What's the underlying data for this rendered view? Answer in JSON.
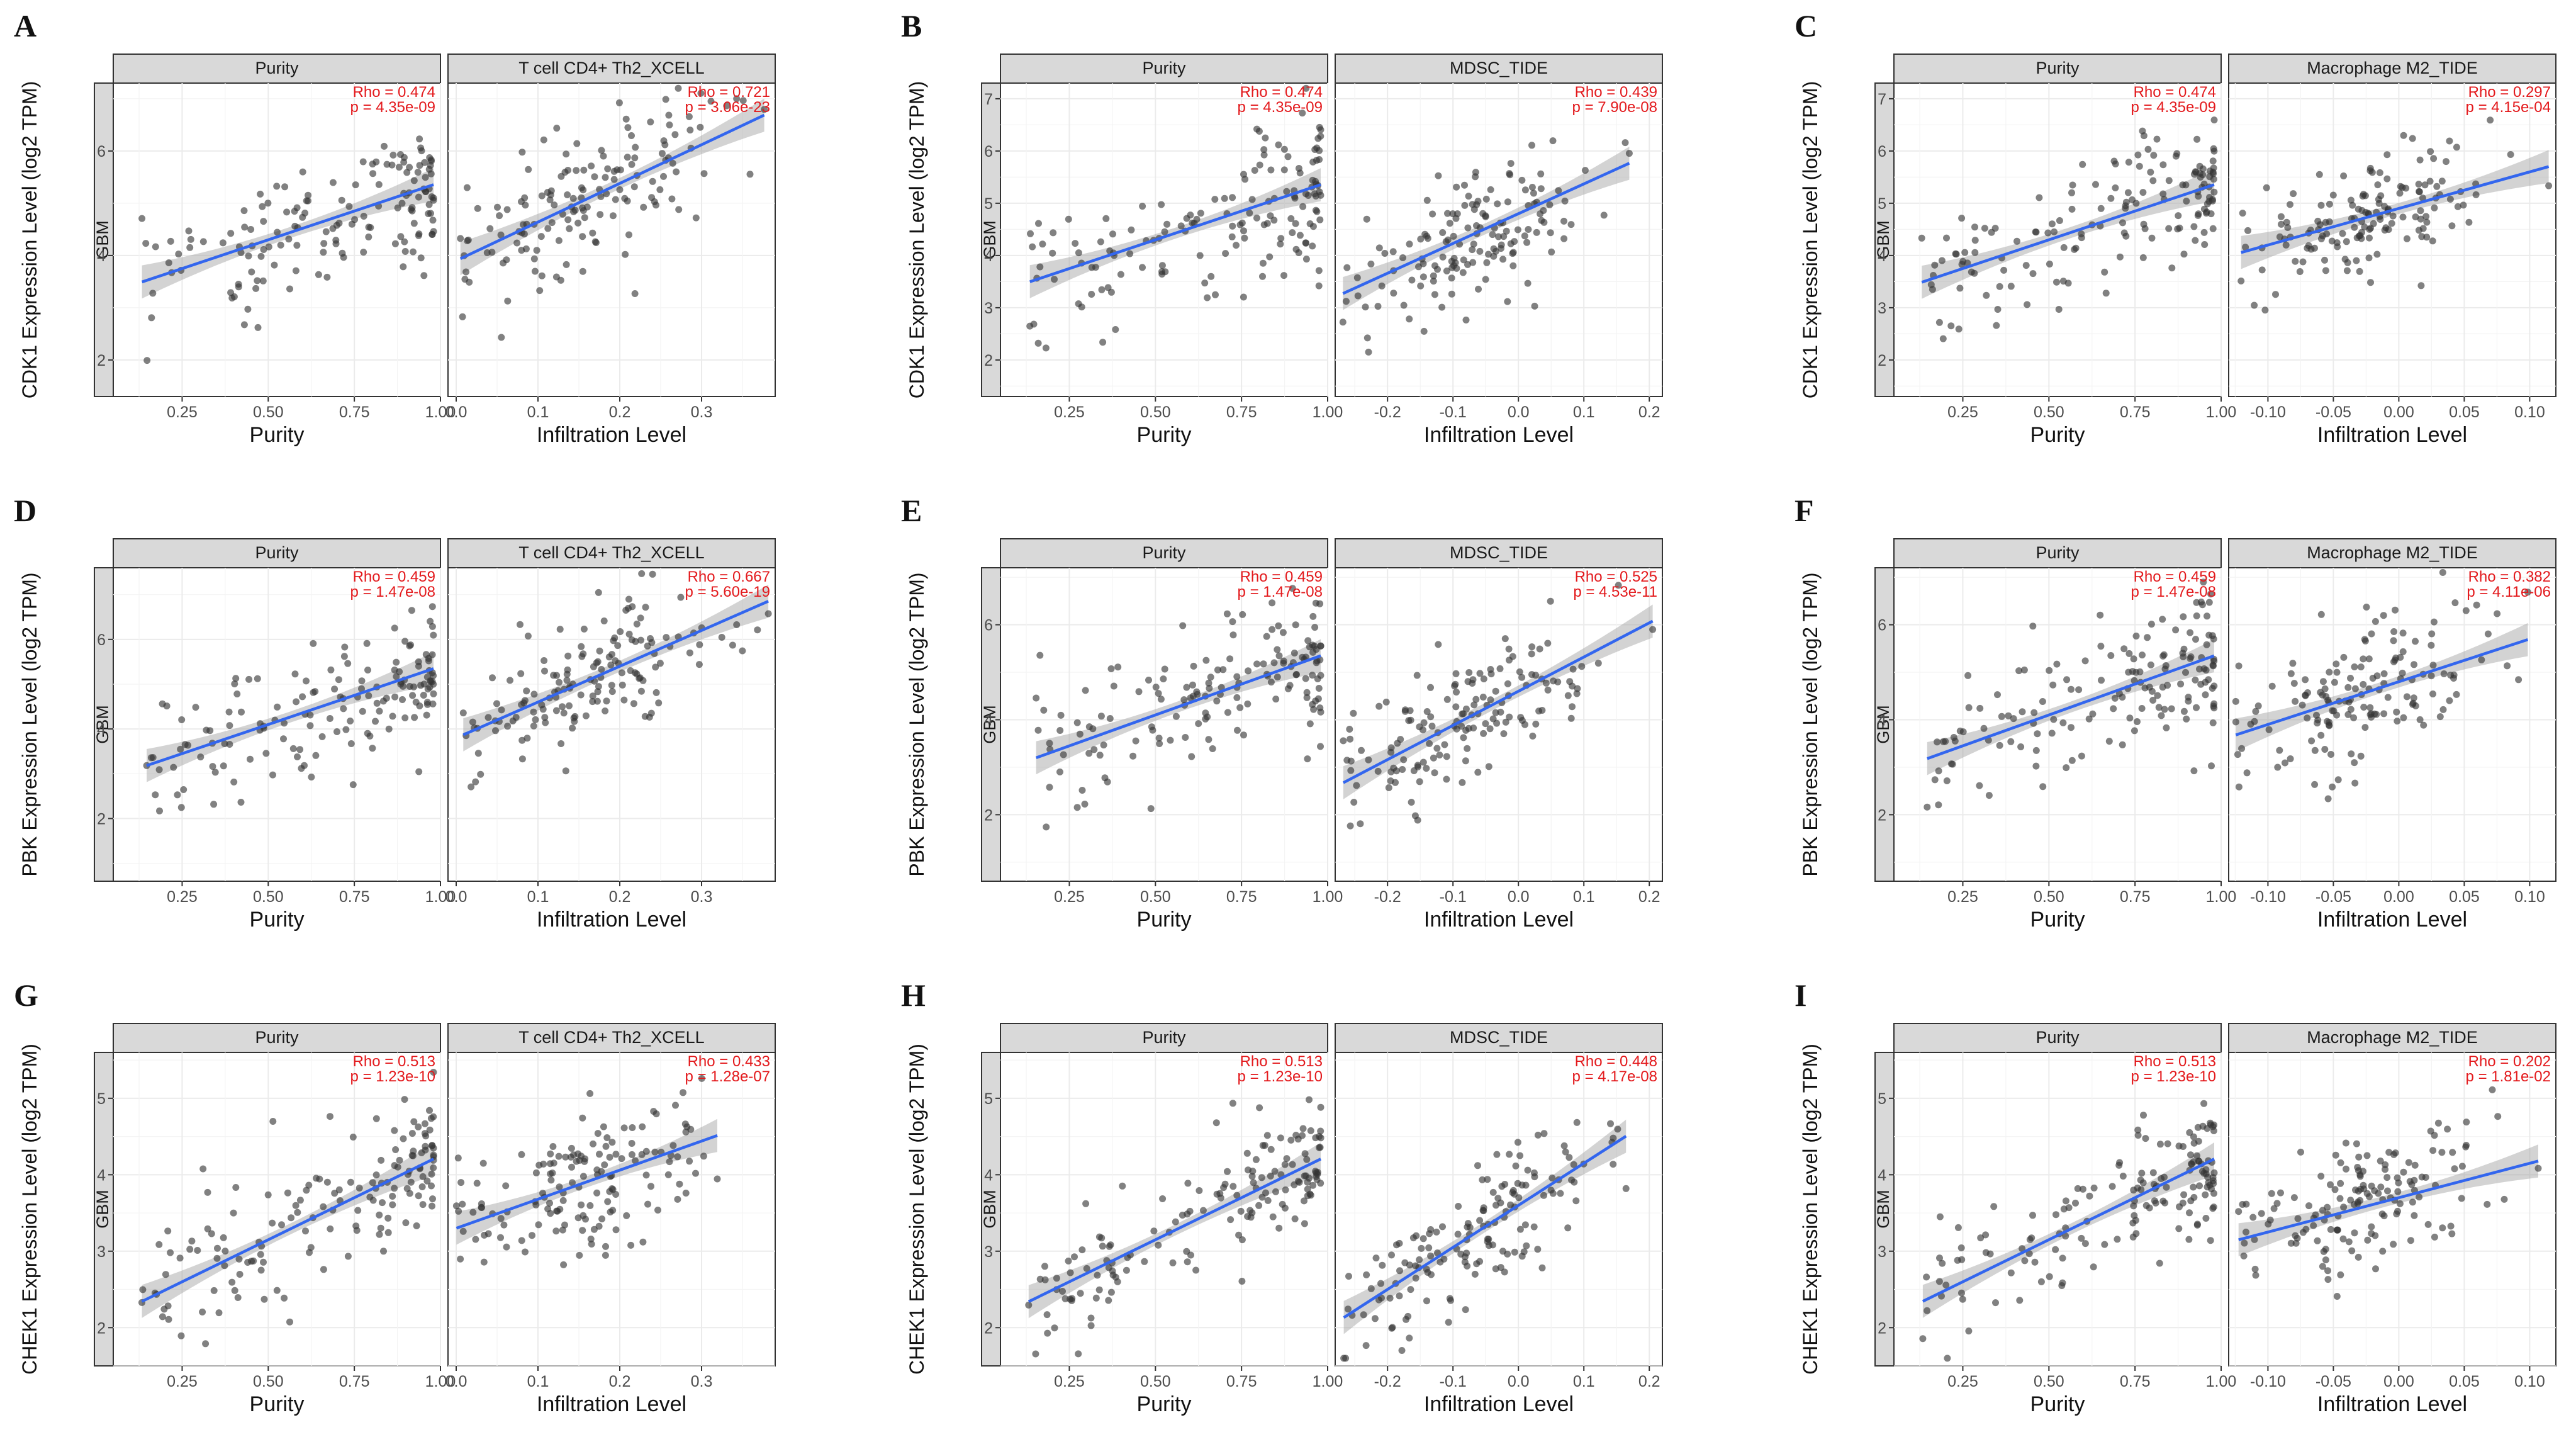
{
  "figure": {
    "strip_label": "GBM",
    "x_title_purity": "Purity",
    "x_title_infiltration": "Infiltration Level"
  },
  "colors": {
    "fit_line": "#3366ee",
    "confidence_band": "#9e9e9e",
    "points": "#333333",
    "stats_text": "#e3191c",
    "strip_background": "#d9d9d9"
  },
  "chart_data": [
    {
      "id": "A",
      "type": "scatter",
      "gene": "CDK1",
      "ylabel": "CDK1 Expression Level (log2 TPM)",
      "ylim": [
        1.3,
        7.3
      ],
      "yticks": [
        2,
        4,
        6
      ],
      "facets": [
        {
          "title": "Purity",
          "xlabel": "Purity",
          "xlim": [
            0.05,
            1.0
          ],
          "xticks": [
            0.25,
            0.5,
            0.75,
            1.0
          ],
          "xtick_labels": [
            "0.25",
            "0.50",
            "0.75",
            "1.00"
          ],
          "rho": "Rho = 0.474",
          "p": "p = 4.35e-09",
          "fit": {
            "slope": 2.2,
            "intercept": 3.2
          }
        },
        {
          "title": "T cell CD4+ Th2_XCELL",
          "xlabel": "Infiltration Level",
          "xlim": [
            -0.01,
            0.39
          ],
          "xticks": [
            0.0,
            0.1,
            0.2,
            0.3
          ],
          "xtick_labels": [
            "0.0",
            "0.1",
            "0.2",
            "0.3"
          ],
          "rho": "Rho = 0.721",
          "p": "p = 3.06e-23",
          "fit": {
            "slope": 7.4,
            "intercept": 3.9
          }
        }
      ]
    },
    {
      "id": "B",
      "type": "scatter",
      "gene": "CDK1",
      "ylabel": "CDK1 Expression Level (log2 TPM)",
      "ylim": [
        1.3,
        7.3
      ],
      "yticks": [
        2,
        3,
        4,
        5,
        6,
        7
      ],
      "facets": [
        {
          "title": "Purity",
          "xlabel": "Purity",
          "xlim": [
            0.05,
            1.0
          ],
          "xticks": [
            0.25,
            0.5,
            0.75,
            1.0
          ],
          "xtick_labels": [
            "0.25",
            "0.50",
            "0.75",
            "1.00"
          ],
          "rho": "Rho = 0.474",
          "p": "p = 4.35e-09",
          "fit": {
            "slope": 2.2,
            "intercept": 3.2
          }
        },
        {
          "title": "MDSC_TIDE",
          "xlabel": "Infiltration Level",
          "xlim": [
            -0.28,
            0.22
          ],
          "xticks": [
            -0.2,
            -0.1,
            0.0,
            0.1,
            0.2
          ],
          "xtick_labels": [
            "-0.2",
            "-0.1",
            "0.0",
            "0.1",
            "0.2"
          ],
          "rho": "Rho = 0.439",
          "p": "p = 7.90e-08",
          "fit": {
            "slope": 5.7,
            "intercept": 4.8
          }
        }
      ]
    },
    {
      "id": "C",
      "type": "scatter",
      "gene": "CDK1",
      "ylabel": "CDK1 Expression Level (log2 TPM)",
      "ylim": [
        1.3,
        7.3
      ],
      "yticks": [
        2,
        3,
        4,
        5,
        6,
        7
      ],
      "facets": [
        {
          "title": "Purity",
          "xlabel": "Purity",
          "xlim": [
            0.05,
            1.0
          ],
          "xticks": [
            0.25,
            0.5,
            0.75,
            1.0
          ],
          "xtick_labels": [
            "0.25",
            "0.50",
            "0.75",
            "1.00"
          ],
          "rho": "Rho = 0.474",
          "p": "p = 4.35e-09",
          "fit": {
            "slope": 2.2,
            "intercept": 3.2
          }
        },
        {
          "title": "Macrophage M2_TIDE",
          "xlabel": "Infiltration Level",
          "xlim": [
            -0.13,
            0.12
          ],
          "xticks": [
            -0.1,
            -0.05,
            0.0,
            0.05,
            0.1
          ],
          "xtick_labels": [
            "-0.10",
            "-0.05",
            "0.00",
            "0.05",
            "0.10"
          ],
          "rho": "Rho = 0.297",
          "p": "p = 4.15e-04",
          "fit": {
            "slope": 7.0,
            "intercept": 4.9
          }
        }
      ]
    },
    {
      "id": "D",
      "type": "scatter",
      "gene": "PBK",
      "ylabel": "PBK Expression Level (log2 TPM)",
      "ylim": [
        0.6,
        7.6
      ],
      "yticks": [
        2,
        4,
        6
      ],
      "facets": [
        {
          "title": "Purity",
          "xlabel": "Purity",
          "xlim": [
            0.05,
            1.0
          ],
          "xticks": [
            0.25,
            0.5,
            0.75,
            1.0
          ],
          "xtick_labels": [
            "0.25",
            "0.50",
            "0.75",
            "1.00"
          ],
          "rho": "Rho = 0.459",
          "p": "p = 1.47e-08",
          "fit": {
            "slope": 2.6,
            "intercept": 2.8
          }
        },
        {
          "title": "T cell CD4+ Th2_XCELL",
          "xlabel": "Infiltration Level",
          "xlim": [
            -0.01,
            0.39
          ],
          "xticks": [
            0.0,
            0.1,
            0.2,
            0.3
          ],
          "xtick_labels": [
            "0.0",
            "0.1",
            "0.2",
            "0.3"
          ],
          "rho": "Rho = 0.667",
          "p": "p = 5.60e-19",
          "fit": {
            "slope": 8.0,
            "intercept": 3.8
          }
        }
      ]
    },
    {
      "id": "E",
      "type": "scatter",
      "gene": "PBK",
      "ylabel": "PBK Expression Level (log2 TPM)",
      "ylim": [
        0.6,
        7.2
      ],
      "yticks": [
        2,
        4,
        6
      ],
      "facets": [
        {
          "title": "Purity",
          "xlabel": "Purity",
          "xlim": [
            0.05,
            1.0
          ],
          "xticks": [
            0.25,
            0.5,
            0.75,
            1.0
          ],
          "xtick_labels": [
            "0.25",
            "0.50",
            "0.75",
            "1.00"
          ],
          "rho": "Rho = 0.459",
          "p": "p = 1.47e-08",
          "fit": {
            "slope": 2.6,
            "intercept": 2.8
          }
        },
        {
          "title": "MDSC_TIDE",
          "xlabel": "Infiltration Level",
          "xlim": [
            -0.28,
            0.22
          ],
          "xticks": [
            -0.2,
            -0.1,
            0.0,
            0.1,
            0.2
          ],
          "xtick_labels": [
            "-0.2",
            "-0.1",
            "0.0",
            "0.1",
            "0.2"
          ],
          "rho": "Rho = 0.525",
          "p": "p = 4.53e-11",
          "fit": {
            "slope": 7.2,
            "intercept": 4.6
          }
        }
      ]
    },
    {
      "id": "F",
      "type": "scatter",
      "gene": "PBK",
      "ylabel": "PBK Expression Level (log2 TPM)",
      "ylim": [
        0.6,
        7.2
      ],
      "yticks": [
        2,
        4,
        6
      ],
      "facets": [
        {
          "title": "Purity",
          "xlabel": "Purity",
          "xlim": [
            0.05,
            1.0
          ],
          "xticks": [
            0.25,
            0.5,
            0.75,
            1.0
          ],
          "xtick_labels": [
            "0.25",
            "0.50",
            "0.75",
            "1.00"
          ],
          "rho": "Rho = 0.459",
          "p": "p = 1.47e-08",
          "fit": {
            "slope": 2.6,
            "intercept": 2.8
          }
        },
        {
          "title": "Macrophage M2_TIDE",
          "xlabel": "Infiltration Level",
          "xlim": [
            -0.13,
            0.12
          ],
          "xticks": [
            -0.1,
            -0.05,
            0.0,
            0.05,
            0.1
          ],
          "xtick_labels": [
            "-0.10",
            "-0.05",
            "0.00",
            "0.05",
            "0.10"
          ],
          "rho": "Rho = 0.382",
          "p": "p = 4.11e-06",
          "fit": {
            "slope": 9.0,
            "intercept": 4.8
          }
        }
      ]
    },
    {
      "id": "G",
      "type": "scatter",
      "gene": "CHEK1",
      "ylabel": "CHEK1 Expression Level (log2 TPM)",
      "ylim": [
        1.5,
        5.6
      ],
      "yticks": [
        2,
        3,
        4,
        5
      ],
      "facets": [
        {
          "title": "Purity",
          "xlabel": "Purity",
          "xlim": [
            0.05,
            1.0
          ],
          "xticks": [
            0.25,
            0.5,
            0.75,
            1.0
          ],
          "xtick_labels": [
            "0.25",
            "0.50",
            "0.75",
            "1.00"
          ],
          "rho": "Rho = 0.513",
          "p": "p = 1.23e-10",
          "fit": {
            "slope": 2.2,
            "intercept": 2.05
          }
        },
        {
          "title": "T cell CD4+ Th2_XCELL",
          "xlabel": "Infiltration Level",
          "xlim": [
            -0.01,
            0.39
          ],
          "xticks": [
            0.0,
            0.1,
            0.2,
            0.3
          ],
          "xtick_labels": [
            "0.0",
            "0.1",
            "0.2",
            "0.3"
          ],
          "rho": "Rho = 0.433",
          "p": "p = 1.28e-07",
          "fit": {
            "slope": 3.8,
            "intercept": 3.3
          }
        }
      ]
    },
    {
      "id": "H",
      "type": "scatter",
      "gene": "CHEK1",
      "ylabel": "CHEK1 Expression Level (log2 TPM)",
      "ylim": [
        1.5,
        5.6
      ],
      "yticks": [
        2,
        3,
        4,
        5
      ],
      "facets": [
        {
          "title": "Purity",
          "xlabel": "Purity",
          "xlim": [
            0.05,
            1.0
          ],
          "xticks": [
            0.25,
            0.5,
            0.75,
            1.0
          ],
          "xtick_labels": [
            "0.25",
            "0.50",
            "0.75",
            "1.00"
          ],
          "rho": "Rho = 0.513",
          "p": "p = 1.23e-10",
          "fit": {
            "slope": 2.2,
            "intercept": 2.05
          }
        },
        {
          "title": "MDSC_TIDE",
          "xlabel": "Infiltration Level",
          "xlim": [
            -0.28,
            0.22
          ],
          "xticks": [
            -0.2,
            -0.1,
            0.0,
            0.1,
            0.2
          ],
          "xtick_labels": [
            "-0.2",
            "-0.1",
            "0.0",
            "0.1",
            "0.2"
          ],
          "rho": "Rho = 0.448",
          "p": "p = 4.17e-08",
          "fit": {
            "slope": 5.5,
            "intercept": 3.6
          }
        }
      ]
    },
    {
      "id": "I",
      "type": "scatter",
      "gene": "CHEK1",
      "ylabel": "CHEK1 Expression Level (log2 TPM)",
      "ylim": [
        1.5,
        5.6
      ],
      "yticks": [
        2,
        3,
        4,
        5
      ],
      "facets": [
        {
          "title": "Purity",
          "xlabel": "Purity",
          "xlim": [
            0.05,
            1.0
          ],
          "xticks": [
            0.25,
            0.5,
            0.75,
            1.0
          ],
          "xtick_labels": [
            "0.25",
            "0.50",
            "0.75",
            "1.00"
          ],
          "rho": "Rho = 0.513",
          "p": "p = 1.23e-10",
          "fit": {
            "slope": 2.2,
            "intercept": 2.05
          }
        },
        {
          "title": "Macrophage M2_TIDE",
          "xlabel": "Infiltration Level",
          "xlim": [
            -0.13,
            0.12
          ],
          "xticks": [
            -0.1,
            -0.05,
            0.0,
            0.05,
            0.1
          ],
          "xtick_labels": [
            "-0.10",
            "-0.05",
            "0.00",
            "0.05",
            "0.10"
          ],
          "rho": "Rho = 0.202",
          "p": "p = 1.81e-02",
          "fit": {
            "slope": 4.5,
            "intercept": 3.7
          }
        }
      ]
    }
  ]
}
